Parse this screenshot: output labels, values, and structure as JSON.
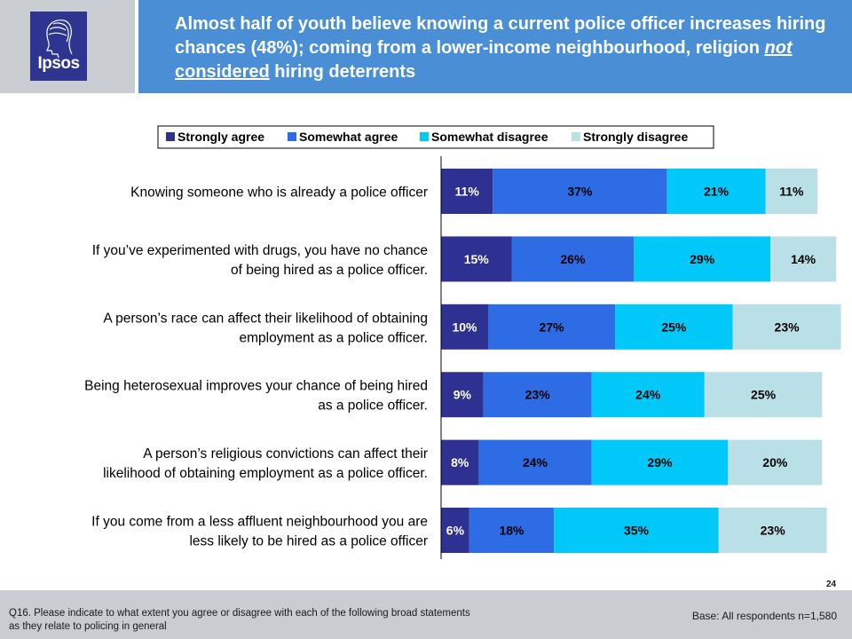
{
  "header": {
    "logo_text": "Ipsos",
    "title_part1": "Almost half of youth believe knowing a current police officer increases hiring chances (48%); coming from a lower-income neighbourhood, religion ",
    "title_not": "not",
    "title_considered": "considered",
    "title_part2": " hiring deterrents"
  },
  "chart_data": {
    "type": "bar",
    "orientation": "horizontal",
    "stacked": true,
    "categories": [
      [
        "Knowing someone who is already a police officer"
      ],
      [
        "If you’ve experimented with drugs, you have no chance",
        "of being hired as a police officer."
      ],
      [
        "A person’s race can affect their likelihood of obtaining",
        "employment as a police officer."
      ],
      [
        "Being heterosexual improves your chance of being hired",
        "as a police officer."
      ],
      [
        "A person’s religious convictions can affect their",
        "likelihood of obtaining employment as a police officer."
      ],
      [
        "If you come from a less affluent neighbourhood you are",
        "less likely to be hired as a police officer"
      ]
    ],
    "series": [
      {
        "name": "Strongly agree",
        "color": "#2e3192",
        "values": [
          11,
          15,
          10,
          9,
          8,
          6
        ]
      },
      {
        "name": "Somewhat agree",
        "color": "#2e6ce6",
        "values": [
          37,
          26,
          27,
          23,
          24,
          18
        ]
      },
      {
        "name": "Somewhat disagree",
        "color": "#00c8f8",
        "values": [
          21,
          29,
          25,
          24,
          29,
          35
        ]
      },
      {
        "name": "Strongly disagree",
        "color": "#b9dfe7",
        "values": [
          11,
          14,
          23,
          25,
          20,
          23
        ]
      }
    ],
    "value_suffix": "%",
    "legend_position": "top",
    "grid": false
  },
  "footer": {
    "question": "Q16. Please indicate to what extent you agree or disagree with each of the following broad statements as they relate to policing in general",
    "base": "Base: All respondents n=1,580",
    "page_number": "24"
  }
}
